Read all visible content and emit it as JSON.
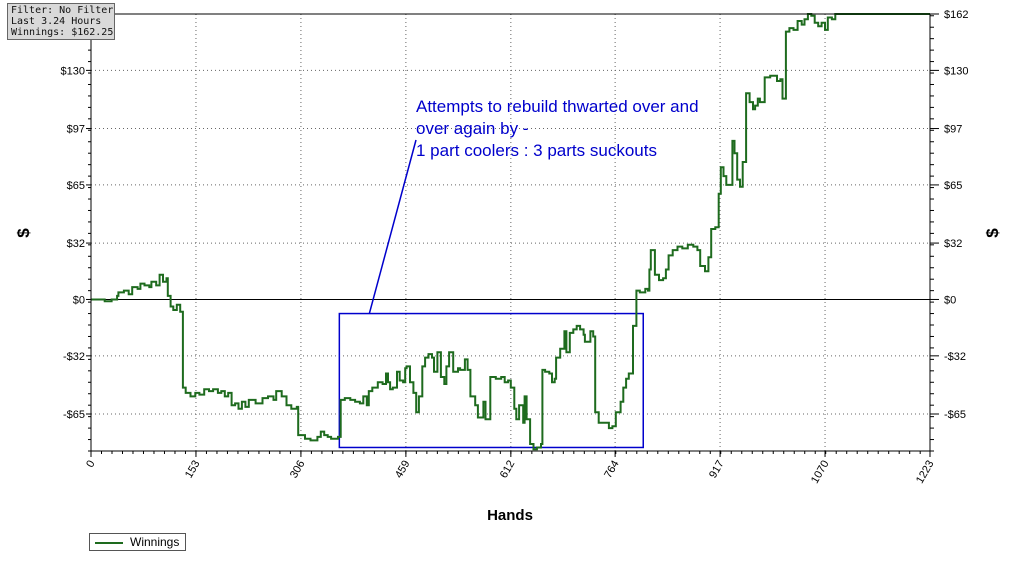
{
  "info": {
    "filter": "Filter: No Filter",
    "duration": "Last 3.24 Hours",
    "winnings": "Winnings: $162.25"
  },
  "annotation": {
    "lines": [
      "Attempts to rebuild thwarted over and",
      "over again by -",
      "1 part coolers : 3 parts suckouts"
    ],
    "color": "#0000cc"
  },
  "legend": {
    "label": "Winnings"
  },
  "colors": {
    "series": "#1e6b1e",
    "annotation": "#0000cc",
    "grid": "#666666"
  },
  "chart_data": {
    "type": "line",
    "title": "",
    "xlabel": "Hands",
    "ylabel": "$",
    "xlim": [
      0,
      1223
    ],
    "ylim": [
      -86,
      162
    ],
    "x_ticks": [
      0,
      153,
      306,
      459,
      612,
      764,
      917,
      1070,
      1223
    ],
    "y_ticks": [
      162,
      130,
      97,
      65,
      32,
      0,
      -32,
      -65
    ],
    "y_tick_labels": [
      "$162",
      "$130",
      "$97",
      "$65",
      "$32",
      "$0",
      "-$32",
      "-$65"
    ],
    "grid": true,
    "legend_position": "bottom-left",
    "series": [
      {
        "name": "Winnings",
        "points": [
          [
            0,
            0
          ],
          [
            10,
            0
          ],
          [
            20,
            -1
          ],
          [
            30,
            0
          ],
          [
            38,
            2
          ],
          [
            40,
            4
          ],
          [
            48,
            5
          ],
          [
            55,
            3
          ],
          [
            60,
            7
          ],
          [
            68,
            6
          ],
          [
            72,
            9
          ],
          [
            78,
            8
          ],
          [
            85,
            7
          ],
          [
            88,
            10
          ],
          [
            95,
            8
          ],
          [
            100,
            14
          ],
          [
            105,
            10
          ],
          [
            110,
            12
          ],
          [
            112,
            2
          ],
          [
            116,
            -4
          ],
          [
            120,
            -6
          ],
          [
            125,
            -3
          ],
          [
            130,
            -7
          ],
          [
            134,
            -50
          ],
          [
            138,
            -53
          ],
          [
            145,
            -55
          ],
          [
            152,
            -53
          ],
          [
            158,
            -54
          ],
          [
            165,
            -51
          ],
          [
            172,
            -52
          ],
          [
            178,
            -51
          ],
          [
            185,
            -53
          ],
          [
            190,
            -52
          ],
          [
            195,
            -55
          ],
          [
            200,
            -53
          ],
          [
            205,
            -60
          ],
          [
            210,
            -59
          ],
          [
            215,
            -62
          ],
          [
            220,
            -58
          ],
          [
            225,
            -61
          ],
          [
            230,
            -57
          ],
          [
            240,
            -59
          ],
          [
            250,
            -56
          ],
          [
            258,
            -55
          ],
          [
            266,
            -57
          ],
          [
            270,
            -52
          ],
          [
            278,
            -55
          ],
          [
            285,
            -60
          ],
          [
            292,
            -62
          ],
          [
            300,
            -61
          ],
          [
            302,
            -77
          ],
          [
            312,
            -79
          ],
          [
            320,
            -80
          ],
          [
            330,
            -78
          ],
          [
            335,
            -75
          ],
          [
            340,
            -77
          ],
          [
            345,
            -78
          ],
          [
            350,
            -79
          ],
          [
            360,
            -78
          ],
          [
            364,
            -57
          ],
          [
            370,
            -56
          ],
          [
            378,
            -57
          ],
          [
            385,
            -58
          ],
          [
            392,
            -59
          ],
          [
            397,
            -55
          ],
          [
            402,
            -60
          ],
          [
            405,
            -52
          ],
          [
            410,
            -50
          ],
          [
            418,
            -47
          ],
          [
            425,
            -48
          ],
          [
            430,
            -42
          ],
          [
            433,
            -47
          ],
          [
            436,
            -51
          ],
          [
            440,
            -50
          ],
          [
            446,
            -41
          ],
          [
            450,
            -46
          ],
          [
            455,
            -47
          ],
          [
            458,
            -39
          ],
          [
            460,
            -38
          ],
          [
            465,
            -47
          ],
          [
            470,
            -53
          ],
          [
            474,
            -64
          ],
          [
            478,
            -55
          ],
          [
            483,
            -38
          ],
          [
            487,
            -33
          ],
          [
            492,
            -31
          ],
          [
            497,
            -33
          ],
          [
            500,
            -41
          ],
          [
            505,
            -30
          ],
          [
            510,
            -44
          ],
          [
            515,
            -48
          ],
          [
            518,
            -38
          ],
          [
            522,
            -30
          ],
          [
            528,
            -41
          ],
          [
            535,
            -39
          ],
          [
            538,
            -40
          ],
          [
            545,
            -34
          ],
          [
            549,
            -40
          ],
          [
            553,
            -55
          ],
          [
            560,
            -60
          ],
          [
            564,
            -67
          ],
          [
            572,
            -58
          ],
          [
            575,
            -68
          ],
          [
            578,
            -68
          ],
          [
            582,
            -44
          ],
          [
            590,
            -45
          ],
          [
            598,
            -44
          ],
          [
            603,
            -47
          ],
          [
            608,
            -46
          ],
          [
            612,
            -50
          ],
          [
            617,
            -62
          ],
          [
            620,
            -68
          ],
          [
            624,
            -60
          ],
          [
            630,
            -70
          ],
          [
            632,
            -55
          ],
          [
            635,
            -68
          ],
          [
            640,
            -82
          ],
          [
            645,
            -85
          ],
          [
            650,
            -84
          ],
          [
            656,
            -82
          ],
          [
            658,
            -40
          ],
          [
            662,
            -41
          ],
          [
            668,
            -42
          ],
          [
            672,
            -47
          ],
          [
            676,
            -45
          ],
          [
            678,
            -33
          ],
          [
            684,
            -28
          ],
          [
            690,
            -18
          ],
          [
            693,
            -30
          ],
          [
            698,
            -19
          ],
          [
            703,
            -17
          ],
          [
            708,
            -15
          ],
          [
            713,
            -17
          ],
          [
            718,
            -20
          ],
          [
            720,
            -24
          ],
          [
            728,
            -18
          ],
          [
            732,
            -21
          ],
          [
            735,
            -64
          ],
          [
            740,
            -70
          ],
          [
            748,
            -70
          ],
          [
            755,
            -73
          ],
          [
            760,
            -72
          ],
          [
            765,
            -64
          ],
          [
            772,
            -58
          ],
          [
            776,
            -50
          ],
          [
            780,
            -45
          ],
          [
            784,
            -42
          ],
          [
            790,
            -15
          ],
          [
            795,
            5
          ],
          [
            800,
            4
          ],
          [
            808,
            6
          ],
          [
            812,
            5
          ],
          [
            814,
            17
          ],
          [
            816,
            28
          ],
          [
            822,
            14
          ],
          [
            828,
            11
          ],
          [
            834,
            12
          ],
          [
            838,
            17
          ],
          [
            842,
            25
          ],
          [
            848,
            28
          ],
          [
            855,
            30
          ],
          [
            862,
            29
          ],
          [
            870,
            31
          ],
          [
            878,
            30
          ],
          [
            884,
            28
          ],
          [
            888,
            19
          ],
          [
            892,
            19
          ],
          [
            895,
            16
          ],
          [
            900,
            24
          ],
          [
            904,
            40
          ],
          [
            910,
            41
          ],
          [
            915,
            60
          ],
          [
            918,
            75
          ],
          [
            922,
            70
          ],
          [
            926,
            65
          ],
          [
            930,
            65
          ],
          [
            935,
            90
          ],
          [
            938,
            83
          ],
          [
            942,
            68
          ],
          [
            946,
            64
          ],
          [
            950,
            78
          ],
          [
            955,
            117
          ],
          [
            960,
            112
          ],
          [
            965,
            108
          ],
          [
            968,
            110
          ],
          [
            972,
            114
          ],
          [
            975,
            112
          ],
          [
            982,
            126
          ],
          [
            990,
            127
          ],
          [
            1000,
            124
          ],
          [
            1005,
            125
          ],
          [
            1008,
            114
          ],
          [
            1010,
            114
          ],
          [
            1013,
            152
          ],
          [
            1018,
            154
          ],
          [
            1024,
            153
          ],
          [
            1030,
            158
          ],
          [
            1036,
            156
          ],
          [
            1040,
            159
          ],
          [
            1045,
            162
          ],
          [
            1050,
            161
          ],
          [
            1055,
            157
          ],
          [
            1060,
            155
          ],
          [
            1065,
            157
          ],
          [
            1070,
            153
          ],
          [
            1074,
            160
          ],
          [
            1080,
            159
          ],
          [
            1085,
            162
          ],
          [
            1223,
            162
          ]
        ]
      }
    ],
    "annotations": [
      {
        "shape": "rectangle",
        "x_range": [
          362,
          805
        ],
        "y_range": [
          -84,
          -8
        ]
      }
    ]
  }
}
